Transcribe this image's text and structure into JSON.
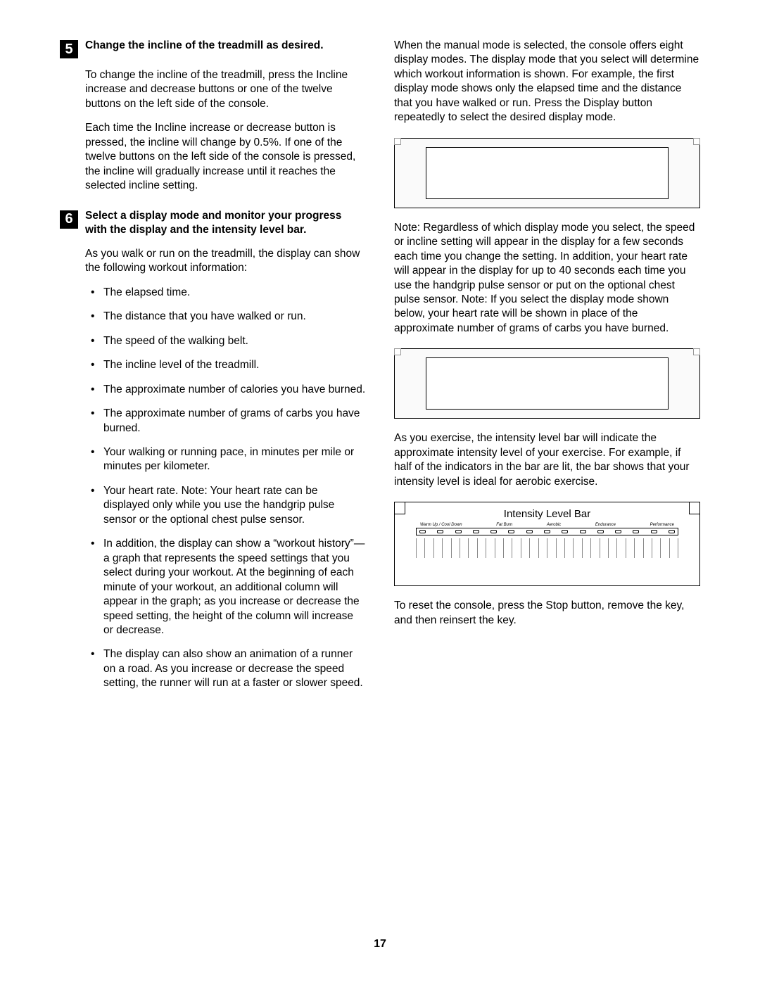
{
  "pageNumber": "17",
  "left": {
    "step5": {
      "num": "5",
      "title": "Change the incline of the treadmill as desired.",
      "p1": "To change the incline of the treadmill, press the Incline increase and decrease buttons or one of the twelve buttons on the left side of the console.",
      "p2": "Each time the Incline increase or decrease button is pressed, the incline will change by 0.5%. If one of the twelve buttons on the left side of the console is pressed, the incline will gradually increase until it reaches the selected incline setting."
    },
    "step6": {
      "num": "6",
      "title": "Select a display mode and monitor your progress with the display and the intensity level bar.",
      "intro": "As you walk or run on the treadmill, the display can show the following workout information:",
      "bullets": [
        "The elapsed time.",
        "The distance that you have walked or run.",
        "The speed of the walking belt.",
        "The incline level of the treadmill.",
        "The approximate number of calories you have burned.",
        "The approximate number of grams of carbs you have burned.",
        "Your walking or running pace, in minutes per mile or minutes per kilometer.",
        "Your heart rate. Note: Your heart rate can be displayed only while you use the handgrip pulse sensor or the optional chest pulse sensor.",
        "In addition, the display can show a “workout history”—a graph that represents the speed settings that you select during your workout. At the beginning of each minute of your workout, an additional column will appear in the graph; as you increase or decrease the speed setting, the height of the column will increase or decrease.",
        "The display can also show an animation of a runner on a road. As you increase or decrease the speed setting, the runner will run at a faster or slower speed."
      ]
    }
  },
  "right": {
    "p1": "When the manual mode is selected, the console offers eight display modes. The display mode that you select will determine which workout information is shown. For example, the first display mode shows only the elapsed time and the distance that you have walked or run. Press the Display button repeatedly to select the desired display mode.",
    "p2": "Note: Regardless of which display mode you select, the speed or incline setting will appear in the display for a few seconds each time you change the setting. In addition, your heart rate will appear in the display for up to 40 seconds each time you use the handgrip pulse sensor or put on the optional chest pulse sensor. Note: If you select the display mode shown below, your heart rate will be shown in place of the approximate number of grams of carbs you have burned.",
    "p3": "As you exercise, the intensity level bar will indicate the approximate intensity level of your exercise. For example, if half of the indicators in the bar are lit, the bar shows that your intensity level is ideal for aerobic exercise.",
    "intensity": {
      "title": "Intensity Level Bar",
      "zones": [
        "Warm Up / Cool Down",
        "Fat Burn",
        "Aerobic",
        "Endurance",
        "Performance"
      ],
      "ledCount": 15,
      "tickCount": 30
    },
    "p4": "To reset the console, press the Stop button, remove the key, and then reinsert the key."
  }
}
